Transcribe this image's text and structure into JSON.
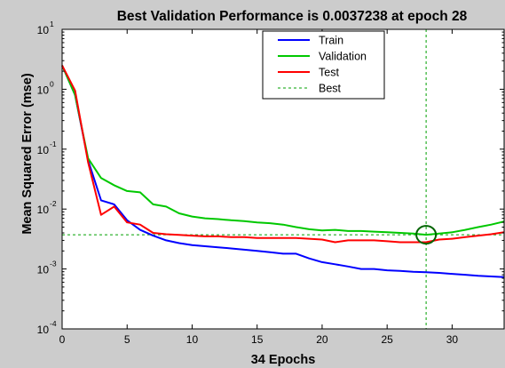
{
  "chart_data": {
    "type": "line",
    "title": "Best Validation Performance is 0.0037238 at epoch 28",
    "xlabel": "34 Epochs",
    "ylabel": "Mean Squared Error  (mse)",
    "xlim": [
      0,
      34
    ],
    "ylim": [
      0.0001,
      10
    ],
    "yscale": "log",
    "xticks": [
      "0",
      "5",
      "10",
      "15",
      "20",
      "25",
      "30"
    ],
    "yticks": [
      {
        "base": "10",
        "exp": "1",
        "value": 10
      },
      {
        "base": "10",
        "exp": "0",
        "value": 1
      },
      {
        "base": "10",
        "exp": "-1",
        "value": 0.1
      },
      {
        "base": "10",
        "exp": "-2",
        "value": 0.01
      },
      {
        "base": "10",
        "exp": "-3",
        "value": 0.001
      },
      {
        "base": "10",
        "exp": "-4",
        "value": 0.0001
      }
    ],
    "grid": false,
    "legend_position": "top-right",
    "x": [
      0,
      1,
      2,
      3,
      4,
      5,
      6,
      7,
      8,
      9,
      10,
      11,
      12,
      13,
      14,
      15,
      16,
      17,
      18,
      19,
      20,
      21,
      22,
      23,
      24,
      25,
      26,
      27,
      28,
      29,
      30,
      31,
      32,
      33,
      34
    ],
    "series": [
      {
        "name": "Train",
        "color": "#0000ff",
        "style": "solid",
        "values": [
          2.5,
          0.8,
          0.065,
          0.014,
          0.012,
          0.0065,
          0.0045,
          0.0036,
          0.003,
          0.0027,
          0.0025,
          0.0024,
          0.0023,
          0.0022,
          0.0021,
          0.002,
          0.0019,
          0.0018,
          0.0018,
          0.0015,
          0.0013,
          0.0012,
          0.0011,
          0.001,
          0.001,
          0.00095,
          0.00093,
          0.0009,
          0.00088,
          0.00086,
          0.00083,
          0.0008,
          0.00077,
          0.00075,
          0.00073
        ]
      },
      {
        "name": "Validation",
        "color": "#00c800",
        "style": "solid",
        "values": [
          2.5,
          0.8,
          0.07,
          0.033,
          0.025,
          0.02,
          0.019,
          0.012,
          0.011,
          0.0085,
          0.0075,
          0.007,
          0.0068,
          0.0065,
          0.0063,
          0.006,
          0.0058,
          0.0055,
          0.005,
          0.0046,
          0.0044,
          0.0045,
          0.0043,
          0.0043,
          0.0042,
          0.0041,
          0.004,
          0.0039,
          0.0037238,
          0.0039,
          0.0041,
          0.0045,
          0.005,
          0.0055,
          0.0062
        ]
      },
      {
        "name": "Test",
        "color": "#ff0000",
        "style": "solid",
        "values": [
          2.5,
          0.95,
          0.06,
          0.008,
          0.011,
          0.006,
          0.0055,
          0.004,
          0.0038,
          0.0037,
          0.0036,
          0.0035,
          0.0035,
          0.0034,
          0.0034,
          0.0033,
          0.0033,
          0.0033,
          0.0033,
          0.0032,
          0.0031,
          0.0028,
          0.003,
          0.003,
          0.003,
          0.0029,
          0.0028,
          0.0028,
          0.0028,
          0.0031,
          0.0032,
          0.0034,
          0.0036,
          0.0038,
          0.0041
        ]
      }
    ],
    "best": {
      "name": "Best",
      "color": "#00a000",
      "style": "dashed",
      "epoch": 28,
      "value": 0.0037238
    },
    "legend": [
      {
        "label": "Train",
        "color": "#0000ff",
        "style": "solid"
      },
      {
        "label": "Validation",
        "color": "#00c800",
        "style": "solid"
      },
      {
        "label": "Test",
        "color": "#ff0000",
        "style": "solid"
      },
      {
        "label": "Best",
        "color": "#00a000",
        "style": "dashed"
      }
    ]
  }
}
